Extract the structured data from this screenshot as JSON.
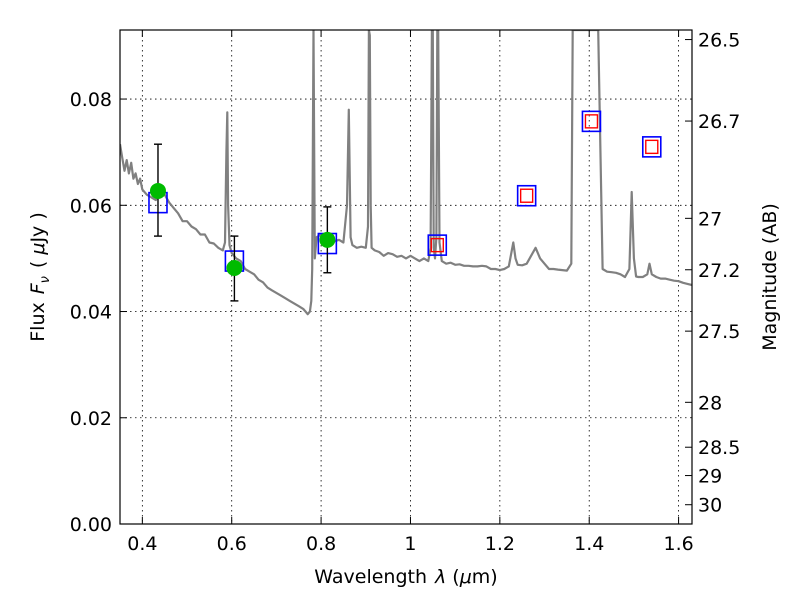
{
  "chart_data": {
    "type": "line",
    "title": "",
    "xlabel": "Wavelength",
    "xlabel_symbol": "λ",
    "xlabel_unit_open": "(",
    "xlabel_unit_mu": "μ",
    "xlabel_unit_rest": "m)",
    "ylabel": "Flux",
    "ylabel_symbol": "F",
    "ylabel_subscript": "ν",
    "ylabel_unit_open": "(",
    "ylabel_unit_mu": "μ",
    "ylabel_unit_rest": "Jy )",
    "y2label": "Magnitude (AB)",
    "xlim": [
      0.35,
      1.63
    ],
    "ylim": [
      0.0,
      0.093
    ],
    "grid": true,
    "x_ticks": [
      {
        "value": 0.4,
        "label": "0.4"
      },
      {
        "value": 0.6,
        "label": "0.6"
      },
      {
        "value": 0.8,
        "label": "0.8"
      },
      {
        "value": 1.0,
        "label": "1"
      },
      {
        "value": 1.2,
        "label": "1.2"
      },
      {
        "value": 1.4,
        "label": "1.4"
      },
      {
        "value": 1.6,
        "label": "1.6"
      }
    ],
    "y_ticks": [
      {
        "value": 0.0,
        "label": "0.00"
      },
      {
        "value": 0.02,
        "label": "0.02"
      },
      {
        "value": 0.04,
        "label": "0.04"
      },
      {
        "value": 0.06,
        "label": "0.06"
      },
      {
        "value": 0.08,
        "label": "0.08"
      }
    ],
    "y2_ticks": [
      {
        "magnitude": 26.5,
        "label": "26.5"
      },
      {
        "magnitude": 26.7,
        "label": "26.7"
      },
      {
        "magnitude": 27.0,
        "label": "27"
      },
      {
        "magnitude": 27.2,
        "label": "27.2"
      },
      {
        "magnitude": 27.5,
        "label": "27.5"
      },
      {
        "magnitude": 28.0,
        "label": "28"
      },
      {
        "magnitude": 28.5,
        "label": "28.5"
      },
      {
        "magnitude": 29.0,
        "label": "29"
      },
      {
        "magnitude": 30.0,
        "label": "30"
      }
    ],
    "series": [
      {
        "kind": "model_spectrum",
        "color": "#808080",
        "x": [
          0.35,
          0.355,
          0.36,
          0.365,
          0.37,
          0.375,
          0.38,
          0.385,
          0.39,
          0.395,
          0.4,
          0.41,
          0.42,
          0.43,
          0.44,
          0.45,
          0.46,
          0.47,
          0.48,
          0.49,
          0.5,
          0.51,
          0.52,
          0.53,
          0.54,
          0.55,
          0.56,
          0.57,
          0.58,
          0.585,
          0.588,
          0.59,
          0.592,
          0.595,
          0.6,
          0.61,
          0.62,
          0.63,
          0.64,
          0.65,
          0.66,
          0.67,
          0.68,
          0.69,
          0.7,
          0.71,
          0.72,
          0.73,
          0.74,
          0.75,
          0.76,
          0.765,
          0.77,
          0.775,
          0.778,
          0.78,
          0.783,
          0.786,
          0.79,
          0.8,
          0.81,
          0.82,
          0.83,
          0.84,
          0.85,
          0.858,
          0.862,
          0.866,
          0.87,
          0.88,
          0.89,
          0.9,
          0.905,
          0.907,
          0.909,
          0.911,
          0.913,
          0.92,
          0.93,
          0.94,
          0.95,
          0.96,
          0.97,
          0.98,
          0.99,
          1.0,
          1.01,
          1.02,
          1.03,
          1.04,
          1.045,
          1.048,
          1.05,
          1.052,
          1.055,
          1.058,
          1.06,
          1.062,
          1.065,
          1.07,
          1.08,
          1.09,
          1.1,
          1.11,
          1.12,
          1.13,
          1.14,
          1.15,
          1.16,
          1.17,
          1.18,
          1.19,
          1.2,
          1.21,
          1.22,
          1.23,
          1.235,
          1.24,
          1.25,
          1.26,
          1.27,
          1.28,
          1.29,
          1.3,
          1.31,
          1.32,
          1.33,
          1.34,
          1.35,
          1.36,
          1.363,
          1.366,
          1.37,
          1.375,
          1.38,
          1.385,
          1.39,
          1.395,
          1.398,
          1.4,
          1.403,
          1.406,
          1.41,
          1.415,
          1.42,
          1.43,
          1.44,
          1.45,
          1.46,
          1.47,
          1.48,
          1.49,
          1.495,
          1.5,
          1.505,
          1.51,
          1.52,
          1.53,
          1.535,
          1.54,
          1.55,
          1.56,
          1.57,
          1.58,
          1.59,
          1.6,
          1.61,
          1.62,
          1.63
        ],
        "y": [
          0.0715,
          0.069,
          0.0665,
          0.0685,
          0.066,
          0.068,
          0.065,
          0.066,
          0.064,
          0.065,
          0.063,
          0.062,
          0.0615,
          0.061,
          0.0625,
          0.062,
          0.0605,
          0.0595,
          0.0585,
          0.057,
          0.057,
          0.056,
          0.0555,
          0.0545,
          0.0545,
          0.053,
          0.0528,
          0.052,
          0.0515,
          0.053,
          0.07,
          0.0775,
          0.06,
          0.0525,
          0.051,
          0.05,
          0.0495,
          0.048,
          0.0475,
          0.047,
          0.046,
          0.0455,
          0.0445,
          0.044,
          0.0435,
          0.043,
          0.0425,
          0.042,
          0.0415,
          0.041,
          0.0405,
          0.04,
          0.0395,
          0.04,
          0.042,
          0.048,
          0.093,
          0.05,
          0.054,
          0.0545,
          0.0535,
          0.0538,
          0.0532,
          0.0535,
          0.053,
          0.06,
          0.078,
          0.054,
          0.0525,
          0.052,
          0.0522,
          0.052,
          0.056,
          0.093,
          0.092,
          0.06,
          0.052,
          0.0515,
          0.0512,
          0.0505,
          0.051,
          0.0508,
          0.0503,
          0.0505,
          0.05,
          0.0505,
          0.05,
          0.0495,
          0.05,
          0.0495,
          0.052,
          0.093,
          0.093,
          0.052,
          0.05,
          0.054,
          0.093,
          0.093,
          0.053,
          0.0495,
          0.049,
          0.0492,
          0.0488,
          0.0489,
          0.0486,
          0.0486,
          0.0485,
          0.0485,
          0.0486,
          0.0485,
          0.048,
          0.048,
          0.0478,
          0.048,
          0.0485,
          0.053,
          0.05,
          0.0488,
          0.0487,
          0.049,
          0.0505,
          0.052,
          0.05,
          0.049,
          0.048,
          0.048,
          0.0479,
          0.0478,
          0.0477,
          0.049,
          0.093,
          0.093,
          0.093,
          0.093,
          0.093,
          0.093,
          0.093,
          0.093,
          0.093,
          0.093,
          0.093,
          0.093,
          0.093,
          0.093,
          0.093,
          0.048,
          0.0475,
          0.0474,
          0.0473,
          0.047,
          0.0465,
          0.048,
          0.0625,
          0.05,
          0.0466,
          0.0465,
          0.0465,
          0.047,
          0.049,
          0.047,
          0.0465,
          0.0462,
          0.0462,
          0.046,
          0.0458,
          0.0457,
          0.0454,
          0.0452,
          0.045
        ]
      },
      {
        "kind": "model_photometry",
        "marker": "open-square",
        "color": "#0000ff",
        "points": [
          {
            "x": 0.435,
            "y": 0.0605
          },
          {
            "x": 0.606,
            "y": 0.0495
          },
          {
            "x": 0.814,
            "y": 0.0528
          },
          {
            "x": 1.06,
            "y": 0.0525
          },
          {
            "x": 1.26,
            "y": 0.0618
          },
          {
            "x": 1.405,
            "y": 0.0758
          },
          {
            "x": 1.54,
            "y": 0.071
          }
        ]
      },
      {
        "kind": "observed_flux",
        "marker": "filled-circle",
        "color": "#00bb00",
        "errorbar_color": "#000000",
        "points": [
          {
            "x": 0.435,
            "y": 0.0627,
            "err_low": 0.0085,
            "err_high": 0.0088
          },
          {
            "x": 0.606,
            "y": 0.0482,
            "err_low": 0.0062,
            "err_high": 0.006
          },
          {
            "x": 0.814,
            "y": 0.0535,
            "err_low": 0.0062,
            "err_high": 0.0062
          }
        ]
      },
      {
        "kind": "upper_limit_or_predicted",
        "marker": "small-open-square",
        "color": "#ff0000",
        "points": [
          {
            "x": 1.06,
            "y": 0.0525
          },
          {
            "x": 1.26,
            "y": 0.0618
          },
          {
            "x": 1.405,
            "y": 0.0758
          },
          {
            "x": 1.54,
            "y": 0.071
          }
        ]
      }
    ]
  }
}
